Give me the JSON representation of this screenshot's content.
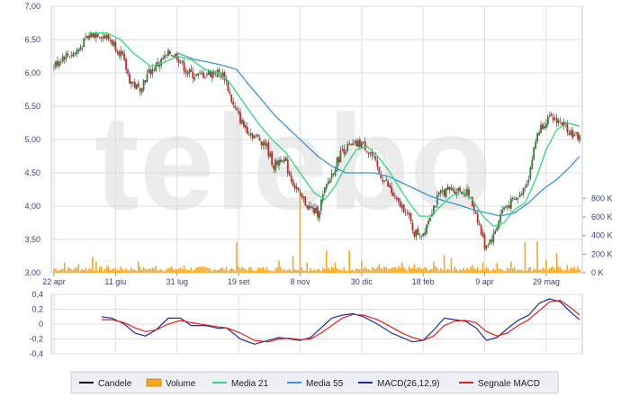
{
  "watermark": "telebo",
  "chart_data": [
    {
      "type": "candlestick",
      "title": "",
      "x_ticks": [
        "22 apr",
        "11 giu",
        "31 lug",
        "19 set",
        "8 nov",
        "30 dic",
        "18 feb",
        "9 apr",
        "29 mag"
      ],
      "x_tick_index": [
        0,
        35,
        70,
        105,
        140,
        175,
        210,
        245,
        280
      ],
      "n_bars": 300,
      "y_ticks": [
        "7,00",
        "6,50",
        "6,00",
        "5,50",
        "5,00",
        "4,50",
        "4,00",
        "3,50",
        "3,00"
      ],
      "y_tick_values": [
        7.0,
        6.5,
        6.0,
        5.5,
        5.0,
        4.5,
        4.0,
        3.5,
        3.0
      ],
      "ylim": [
        3.0,
        7.0
      ],
      "grid": true,
      "price_path": [
        [
          0,
          6.1
        ],
        [
          5,
          6.25
        ],
        [
          12,
          6.3
        ],
        [
          20,
          6.55
        ],
        [
          25,
          6.6
        ],
        [
          32,
          6.5
        ],
        [
          38,
          6.3
        ],
        [
          43,
          5.9
        ],
        [
          48,
          5.75
        ],
        [
          54,
          6.0
        ],
        [
          60,
          6.15
        ],
        [
          66,
          6.3
        ],
        [
          70,
          6.25
        ],
        [
          76,
          6.0
        ],
        [
          82,
          5.95
        ],
        [
          88,
          6.0
        ],
        [
          93,
          6.0
        ],
        [
          97,
          5.95
        ],
        [
          102,
          5.5
        ],
        [
          108,
          5.2
        ],
        [
          114,
          5.05
        ],
        [
          120,
          4.95
        ],
        [
          125,
          4.6
        ],
        [
          130,
          4.75
        ],
        [
          136,
          4.35
        ],
        [
          140,
          4.15
        ],
        [
          146,
          3.95
        ],
        [
          150,
          3.9
        ],
        [
          155,
          4.3
        ],
        [
          160,
          4.6
        ],
        [
          164,
          4.85
        ],
        [
          170,
          4.9
        ],
        [
          175,
          4.95
        ],
        [
          180,
          4.8
        ],
        [
          185,
          4.5
        ],
        [
          190,
          4.3
        ],
        [
          195,
          4.05
        ],
        [
          200,
          3.95
        ],
        [
          205,
          3.6
        ],
        [
          210,
          3.6
        ],
        [
          215,
          3.95
        ],
        [
          220,
          4.2
        ],
        [
          225,
          4.25
        ],
        [
          230,
          4.25
        ],
        [
          235,
          4.2
        ],
        [
          240,
          3.9
        ],
        [
          245,
          3.4
        ],
        [
          250,
          3.55
        ],
        [
          255,
          3.95
        ],
        [
          260,
          4.05
        ],
        [
          265,
          4.15
        ],
        [
          270,
          4.45
        ],
        [
          275,
          5.1
        ],
        [
          280,
          5.3
        ],
        [
          286,
          5.3
        ],
        [
          291,
          5.2
        ],
        [
          296,
          5.05
        ],
        [
          299,
          5.05
        ]
      ],
      "ma21_path": [
        [
          20,
          6.6
        ],
        [
          30,
          6.6
        ],
        [
          38,
          6.5
        ],
        [
          45,
          6.3
        ],
        [
          55,
          6.1
        ],
        [
          62,
          6.15
        ],
        [
          70,
          6.25
        ],
        [
          78,
          6.2
        ],
        [
          86,
          6.05
        ],
        [
          94,
          6.0
        ],
        [
          100,
          5.85
        ],
        [
          108,
          5.55
        ],
        [
          116,
          5.25
        ],
        [
          124,
          5.0
        ],
        [
          132,
          4.8
        ],
        [
          140,
          4.5
        ],
        [
          148,
          4.2
        ],
        [
          154,
          4.1
        ],
        [
          160,
          4.3
        ],
        [
          166,
          4.6
        ],
        [
          172,
          4.85
        ],
        [
          178,
          4.9
        ],
        [
          184,
          4.75
        ],
        [
          190,
          4.55
        ],
        [
          196,
          4.3
        ],
        [
          202,
          4.05
        ],
        [
          208,
          3.85
        ],
        [
          214,
          3.85
        ],
        [
          220,
          4.0
        ],
        [
          226,
          4.15
        ],
        [
          232,
          4.22
        ],
        [
          238,
          4.1
        ],
        [
          244,
          3.85
        ],
        [
          250,
          3.7
        ],
        [
          256,
          3.75
        ],
        [
          262,
          3.95
        ],
        [
          268,
          4.05
        ],
        [
          274,
          4.4
        ],
        [
          280,
          4.85
        ],
        [
          286,
          5.15
        ],
        [
          292,
          5.25
        ],
        [
          299,
          5.2
        ]
      ],
      "ma55_path": [
        [
          70,
          6.3
        ],
        [
          80,
          6.2
        ],
        [
          90,
          6.15
        ],
        [
          98,
          6.1
        ],
        [
          104,
          6.05
        ],
        [
          110,
          5.85
        ],
        [
          118,
          5.6
        ],
        [
          126,
          5.35
        ],
        [
          134,
          5.15
        ],
        [
          142,
          4.95
        ],
        [
          150,
          4.75
        ],
        [
          158,
          4.6
        ],
        [
          166,
          4.5
        ],
        [
          174,
          4.5
        ],
        [
          182,
          4.5
        ],
        [
          190,
          4.45
        ],
        [
          198,
          4.35
        ],
        [
          206,
          4.25
        ],
        [
          214,
          4.15
        ],
        [
          222,
          4.08
        ],
        [
          230,
          4.02
        ],
        [
          238,
          3.95
        ],
        [
          246,
          3.9
        ],
        [
          254,
          3.85
        ],
        [
          262,
          3.9
        ],
        [
          270,
          4.05
        ],
        [
          278,
          4.25
        ],
        [
          286,
          4.4
        ],
        [
          294,
          4.6
        ],
        [
          299,
          4.75
        ]
      ]
    },
    {
      "type": "bar",
      "name": "Volume",
      "y_ticks": [
        "800 K",
        "600 K",
        "400 K",
        "200 K",
        "0 K"
      ],
      "y_tick_values": [
        800,
        600,
        400,
        200,
        0
      ],
      "ylim": [
        0,
        900
      ],
      "unit": "K",
      "base_level_k": 45,
      "spikes": [
        [
          6,
          110
        ],
        [
          14,
          95
        ],
        [
          22,
          170
        ],
        [
          24,
          120
        ],
        [
          30,
          80
        ],
        [
          48,
          120
        ],
        [
          58,
          75
        ],
        [
          74,
          80
        ],
        [
          85,
          70
        ],
        [
          104,
          330
        ],
        [
          128,
          130
        ],
        [
          136,
          180
        ],
        [
          140,
          900
        ],
        [
          144,
          110
        ],
        [
          155,
          240
        ],
        [
          160,
          110
        ],
        [
          168,
          240
        ],
        [
          175,
          130
        ],
        [
          185,
          90
        ],
        [
          198,
          110
        ],
        [
          205,
          90
        ],
        [
          216,
          120
        ],
        [
          222,
          190
        ],
        [
          226,
          160
        ],
        [
          238,
          80
        ],
        [
          244,
          110
        ],
        [
          252,
          105
        ],
        [
          260,
          120
        ],
        [
          268,
          330
        ],
        [
          275,
          340
        ],
        [
          280,
          140
        ],
        [
          286,
          210
        ],
        [
          292,
          80
        ],
        [
          298,
          70
        ]
      ]
    },
    {
      "type": "line",
      "name": "MACD",
      "y_ticks": [
        "0,4",
        "0,2",
        "0",
        "-0,2",
        "-0,4"
      ],
      "y_tick_values": [
        0.4,
        0.2,
        0.0,
        -0.2,
        -0.4
      ],
      "ylim": [
        -0.4,
        0.4
      ],
      "series": [
        {
          "name": "MACD(26,12,9)",
          "color": "#1f2f9a",
          "points": [
            [
              27,
              0.1
            ],
            [
              33,
              0.08
            ],
            [
              40,
              0.0
            ],
            [
              46,
              -0.12
            ],
            [
              52,
              -0.16
            ],
            [
              58,
              -0.08
            ],
            [
              65,
              0.08
            ],
            [
              72,
              0.08
            ],
            [
              78,
              -0.02
            ],
            [
              86,
              -0.02
            ],
            [
              94,
              -0.06
            ],
            [
              98,
              -0.05
            ],
            [
              106,
              -0.2
            ],
            [
              114,
              -0.27
            ],
            [
              122,
              -0.22
            ],
            [
              128,
              -0.18
            ],
            [
              134,
              -0.2
            ],
            [
              140,
              -0.22
            ],
            [
              146,
              -0.18
            ],
            [
              152,
              -0.05
            ],
            [
              158,
              0.08
            ],
            [
              164,
              0.12
            ],
            [
              170,
              0.14
            ],
            [
              176,
              0.1
            ],
            [
              184,
              0.0
            ],
            [
              192,
              -0.12
            ],
            [
              198,
              -0.18
            ],
            [
              204,
              -0.24
            ],
            [
              210,
              -0.22
            ],
            [
              216,
              -0.08
            ],
            [
              222,
              0.08
            ],
            [
              228,
              0.06
            ],
            [
              234,
              0.04
            ],
            [
              240,
              -0.05
            ],
            [
              246,
              -0.22
            ],
            [
              252,
              -0.18
            ],
            [
              258,
              -0.06
            ],
            [
              264,
              0.05
            ],
            [
              270,
              0.12
            ],
            [
              276,
              0.28
            ],
            [
              282,
              0.34
            ],
            [
              288,
              0.3
            ],
            [
              294,
              0.16
            ],
            [
              299,
              0.06
            ]
          ]
        },
        {
          "name": "Segnale MACD",
          "color": "#e0201a",
          "points": [
            [
              27,
              0.06
            ],
            [
              33,
              0.06
            ],
            [
              40,
              0.02
            ],
            [
              46,
              -0.05
            ],
            [
              52,
              -0.1
            ],
            [
              58,
              -0.08
            ],
            [
              65,
              0.0
            ],
            [
              72,
              0.05
            ],
            [
              78,
              0.02
            ],
            [
              86,
              -0.01
            ],
            [
              94,
              -0.04
            ],
            [
              98,
              -0.05
            ],
            [
              106,
              -0.12
            ],
            [
              114,
              -0.22
            ],
            [
              122,
              -0.24
            ],
            [
              128,
              -0.2
            ],
            [
              134,
              -0.19
            ],
            [
              140,
              -0.21
            ],
            [
              146,
              -0.2
            ],
            [
              152,
              -0.12
            ],
            [
              158,
              -0.02
            ],
            [
              164,
              0.08
            ],
            [
              170,
              0.13
            ],
            [
              176,
              0.12
            ],
            [
              184,
              0.06
            ],
            [
              192,
              -0.04
            ],
            [
              198,
              -0.12
            ],
            [
              204,
              -0.18
            ],
            [
              210,
              -0.22
            ],
            [
              216,
              -0.16
            ],
            [
              222,
              -0.02
            ],
            [
              228,
              0.04
            ],
            [
              234,
              0.05
            ],
            [
              240,
              0.02
            ],
            [
              246,
              -0.1
            ],
            [
              252,
              -0.16
            ],
            [
              258,
              -0.12
            ],
            [
              264,
              -0.02
            ],
            [
              270,
              0.06
            ],
            [
              276,
              0.18
            ],
            [
              282,
              0.3
            ],
            [
              288,
              0.32
            ],
            [
              294,
              0.22
            ],
            [
              299,
              0.12
            ]
          ]
        }
      ]
    }
  ],
  "legend": [
    {
      "label": "Candele",
      "color": "#000000",
      "kind": "line"
    },
    {
      "label": "Volume",
      "color": "#f5a623",
      "kind": "box"
    },
    {
      "label": "Media 21",
      "color": "#32d77a",
      "kind": "line"
    },
    {
      "label": "Media 55",
      "color": "#3a93d8",
      "kind": "line"
    },
    {
      "label": "MACD(26,12,9)",
      "color": "#1f2f9a",
      "kind": "line"
    },
    {
      "label": "Segnale MACD",
      "color": "#e0201a",
      "kind": "line"
    }
  ],
  "colors": {
    "candle_up": "#2e7d32",
    "candle_down": "#c62828",
    "volume": "#f5a623",
    "ma21": "#32d77a",
    "ma55": "#3a93d8",
    "grid": "#dedede",
    "axis_text": "#3a3f7a"
  }
}
